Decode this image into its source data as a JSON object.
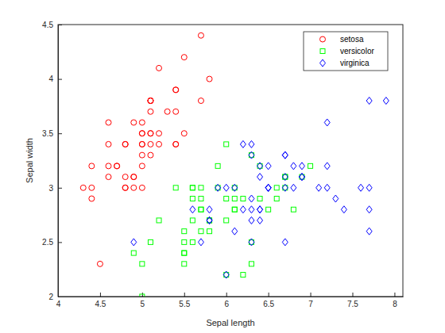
{
  "chart_data": {
    "type": "scatter",
    "x_label": "Sepal length",
    "y_label": "Sepal width",
    "xlim": [
      4,
      8.1
    ],
    "ylim": [
      2,
      4.5
    ],
    "xticks": [
      4,
      4.5,
      5,
      5.5,
      6,
      6.5,
      7,
      7.5,
      8
    ],
    "yticks": [
      2,
      2.5,
      3,
      3.5,
      4,
      4.5
    ],
    "legend": "northeast",
    "series": [
      {
        "name": "setosa",
        "color": "#ff0000",
        "marker": "circle",
        "x": [
          5.1,
          4.9,
          4.7,
          4.6,
          5.0,
          5.4,
          4.6,
          5.0,
          4.4,
          4.9,
          5.4,
          4.8,
          4.8,
          4.3,
          5.8,
          5.7,
          5.4,
          5.1,
          5.7,
          5.1,
          5.4,
          5.1,
          4.6,
          5.1,
          4.8,
          5.0,
          5.0,
          5.2,
          5.2,
          4.7,
          4.8,
          5.4,
          5.2,
          5.5,
          4.9,
          5.0,
          5.5,
          4.9,
          4.4,
          5.1,
          5.0,
          4.5,
          4.4,
          5.0,
          5.1,
          4.8,
          5.1,
          4.6,
          5.3,
          5.0
        ],
        "values": [
          3.5,
          3.0,
          3.2,
          3.1,
          3.6,
          3.9,
          3.4,
          3.4,
          2.9,
          3.1,
          3.7,
          3.4,
          3.0,
          3.0,
          4.0,
          4.4,
          3.9,
          3.5,
          3.8,
          3.8,
          3.4,
          3.7,
          3.6,
          3.3,
          3.4,
          3.0,
          3.4,
          3.5,
          3.4,
          3.2,
          3.1,
          3.4,
          4.1,
          4.2,
          3.1,
          3.2,
          3.5,
          3.6,
          3.0,
          3.4,
          3.5,
          2.3,
          3.2,
          3.5,
          3.8,
          3.0,
          3.8,
          3.2,
          3.7,
          3.3
        ]
      },
      {
        "name": "versicolor",
        "color": "#00ff00",
        "marker": "square",
        "x": [
          7.0,
          6.4,
          6.9,
          5.5,
          6.5,
          5.7,
          6.3,
          4.9,
          6.6,
          5.2,
          5.0,
          5.9,
          6.0,
          6.1,
          5.6,
          6.7,
          5.6,
          5.8,
          6.2,
          5.6,
          5.9,
          6.1,
          6.3,
          6.1,
          6.4,
          6.6,
          6.8,
          6.7,
          6.0,
          5.7,
          5.5,
          5.5,
          5.8,
          6.0,
          5.4,
          6.0,
          6.7,
          6.3,
          5.6,
          5.5,
          5.5,
          6.1,
          5.8,
          5.0,
          5.6,
          5.7,
          5.7,
          6.2,
          5.1,
          5.7
        ],
        "values": [
          3.2,
          3.2,
          3.1,
          2.3,
          2.8,
          2.8,
          3.3,
          2.4,
          2.9,
          2.7,
          2.0,
          3.0,
          2.2,
          2.9,
          2.9,
          3.1,
          3.0,
          2.7,
          2.2,
          2.5,
          3.2,
          2.8,
          2.5,
          2.8,
          2.9,
          3.0,
          2.8,
          3.0,
          2.9,
          2.6,
          2.4,
          2.4,
          2.7,
          2.7,
          3.0,
          3.4,
          3.1,
          2.3,
          3.0,
          2.5,
          2.6,
          3.0,
          2.6,
          2.3,
          2.7,
          3.0,
          2.9,
          2.9,
          2.5,
          2.8
        ]
      },
      {
        "name": "virginica",
        "color": "#0000ff",
        "marker": "diamond",
        "x": [
          6.3,
          5.8,
          7.1,
          6.3,
          6.5,
          7.6,
          4.9,
          7.3,
          6.7,
          7.2,
          6.5,
          6.4,
          6.8,
          5.7,
          5.8,
          6.4,
          6.5,
          7.7,
          7.7,
          6.0,
          6.9,
          5.6,
          7.7,
          6.3,
          6.7,
          7.2,
          6.2,
          6.1,
          6.4,
          7.2,
          7.4,
          7.9,
          6.4,
          6.3,
          6.1,
          7.7,
          6.3,
          6.4,
          6.0,
          6.9,
          6.7,
          6.9,
          5.8,
          6.8,
          6.7,
          6.7,
          6.3,
          6.5,
          6.2,
          5.9
        ],
        "values": [
          3.3,
          2.7,
          3.0,
          2.9,
          3.0,
          3.0,
          2.5,
          2.9,
          2.5,
          3.6,
          3.2,
          2.7,
          3.0,
          2.5,
          2.8,
          3.2,
          3.0,
          3.8,
          2.6,
          2.2,
          3.2,
          2.8,
          2.8,
          2.7,
          3.3,
          3.2,
          2.8,
          3.0,
          2.8,
          3.0,
          2.8,
          3.8,
          2.8,
          2.8,
          2.6,
          3.0,
          3.4,
          3.1,
          3.0,
          3.1,
          3.1,
          3.1,
          2.7,
          3.2,
          3.3,
          3.0,
          2.5,
          3.0,
          3.4,
          3.0
        ]
      }
    ]
  }
}
